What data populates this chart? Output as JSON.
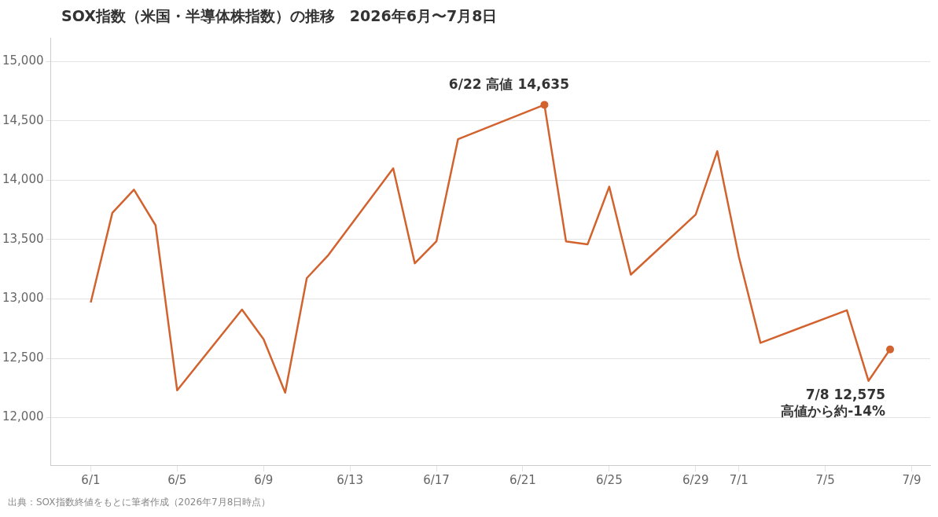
{
  "chart_data": {
    "type": "line",
    "title": "SOX指数（米国・半導体株指数）の推移　2026年6月〜7月8日",
    "x": [
      "2026-06-01",
      "2026-06-02",
      "2026-06-03",
      "2026-06-04",
      "2026-06-05",
      "2026-06-08",
      "2026-06-09",
      "2026-06-10",
      "2026-06-11",
      "2026-06-12",
      "2026-06-15",
      "2026-06-16",
      "2026-06-17",
      "2026-06-18",
      "2026-06-22",
      "2026-06-23",
      "2026-06-24",
      "2026-06-25",
      "2026-06-26",
      "2026-06-29",
      "2026-06-30",
      "2026-07-01",
      "2026-07-02",
      "2026-07-06",
      "2026-07-07",
      "2026-07-08"
    ],
    "series": [
      {
        "color": "#d2622e",
        "values": [
          12970,
          13725,
          13920,
          13620,
          12230,
          12910,
          12660,
          12210,
          13175,
          13370,
          14100,
          13300,
          13485,
          14345,
          14635,
          13485,
          13460,
          13945,
          13205,
          13710,
          14245,
          13355,
          12630,
          12905,
          12310,
          12575
        ]
      }
    ],
    "xlim": [
      "2026-05-30T03:30",
      "2026-07-09T20:30"
    ],
    "xticks": [
      {
        "value": "2026-06-01",
        "label": "6/1"
      },
      {
        "value": "2026-06-05",
        "label": "6/5"
      },
      {
        "value": "2026-06-09",
        "label": "6/9"
      },
      {
        "value": "2026-06-13",
        "label": "6/13"
      },
      {
        "value": "2026-06-17",
        "label": "6/17"
      },
      {
        "value": "2026-06-21",
        "label": "6/21"
      },
      {
        "value": "2026-06-25",
        "label": "6/25"
      },
      {
        "value": "2026-06-29",
        "label": "6/29"
      },
      {
        "value": "2026-07-01",
        "label": "7/1"
      },
      {
        "value": "2026-07-05",
        "label": "7/5"
      },
      {
        "value": "2026-07-09",
        "label": "7/9"
      }
    ],
    "ylim": [
      11600,
      15200
    ],
    "yticks": [
      {
        "value": 12000,
        "label": "12,000"
      },
      {
        "value": 12500,
        "label": "12,500"
      },
      {
        "value": 13000,
        "label": "13,000"
      },
      {
        "value": 13500,
        "label": "13,500"
      },
      {
        "value": 14000,
        "label": "14,000"
      },
      {
        "value": 14500,
        "label": "14,500"
      },
      {
        "value": 15000,
        "label": "15,000"
      }
    ],
    "grid": "y",
    "legend": false,
    "marker": "none",
    "line_style": "solid",
    "annotations": [
      {
        "text": "6/22 高値 14,635",
        "x": "2026-06-22",
        "y": 14635
      },
      {
        "text": "7/8 12,575\n高値から約-14%",
        "x": "2026-07-08",
        "y": 12575
      },
      "出典：SOX指数終値をもとに筆者作成（2026年7月8日時点）"
    ]
  }
}
